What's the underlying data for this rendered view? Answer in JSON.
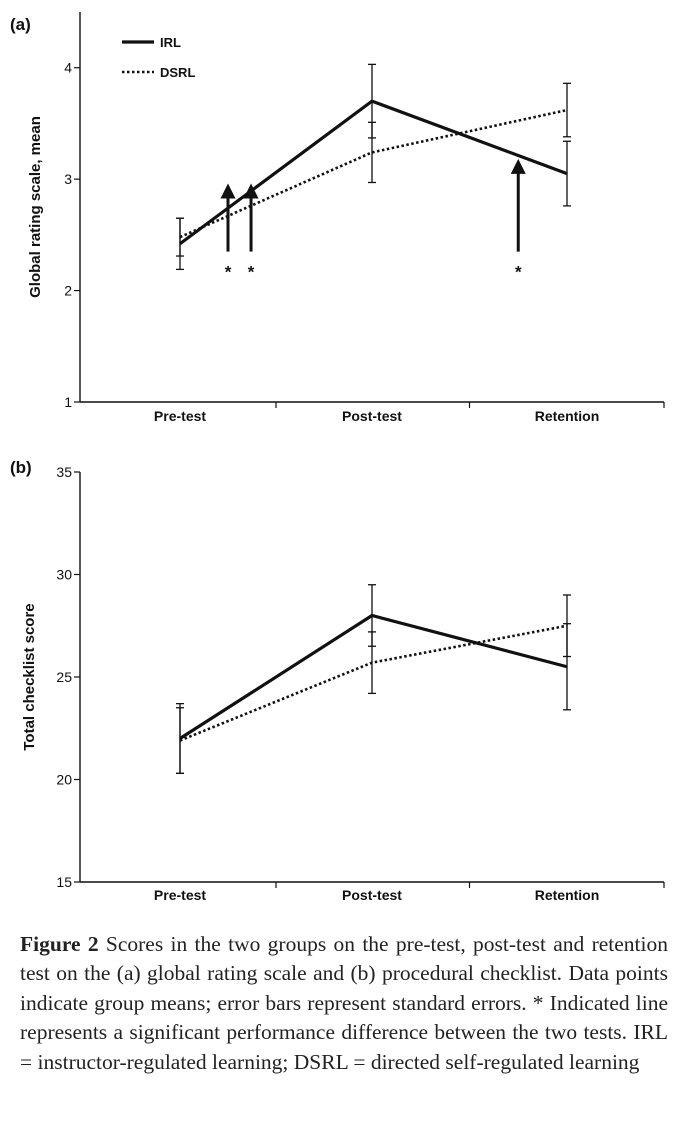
{
  "chart_data": [
    {
      "type": "line",
      "panel_label": "(a)",
      "title": "",
      "xlabel": "",
      "ylabel": "Global rating scale, mean",
      "categories": [
        "Pre-test",
        "Post-test",
        "Retention"
      ],
      "ylim": [
        1,
        4.5
      ],
      "yticks": [
        1,
        2,
        3,
        4
      ],
      "grid": false,
      "legend": "top-left",
      "series": [
        {
          "name": "IRL",
          "style": "solid",
          "values": [
            2.42,
            3.7,
            3.05
          ],
          "errors": [
            0.23,
            0.33,
            0.29
          ]
        },
        {
          "name": "DSRL",
          "style": "dotted",
          "values": [
            2.48,
            3.24,
            3.62
          ],
          "errors": [
            0.17,
            0.27,
            0.24
          ]
        }
      ],
      "annotations": [
        {
          "symbol": "*",
          "x_position": 0.25,
          "y_start": 2.35,
          "y_end": 2.93
        },
        {
          "symbol": "*",
          "x_position": 0.37,
          "y_start": 2.35,
          "y_end": 2.93
        },
        {
          "symbol": "*",
          "x_position": 1.75,
          "y_start": 2.35,
          "y_end": 3.15
        }
      ]
    },
    {
      "type": "line",
      "panel_label": "(b)",
      "title": "",
      "xlabel": "",
      "ylabel": "Total checklist score",
      "categories": [
        "Pre-test",
        "Post-test",
        "Retention"
      ],
      "ylim": [
        15,
        35
      ],
      "yticks": [
        15,
        20,
        25,
        30,
        35
      ],
      "grid": false,
      "legend": "none",
      "series": [
        {
          "name": "IRL",
          "style": "solid",
          "values": [
            22.0,
            28.0,
            25.5
          ],
          "errors": [
            1.7,
            1.5,
            2.1
          ]
        },
        {
          "name": "DSRL",
          "style": "dotted",
          "values": [
            21.9,
            25.7,
            27.5
          ],
          "errors": [
            1.6,
            1.5,
            1.5
          ]
        }
      ],
      "annotations": []
    }
  ],
  "caption": {
    "label": "Figure 2",
    "text": " Scores in the two groups on the pre-test, post-test and retention test on the (a) global rating scale and (b) procedural checklist. Data points indicate group means; error bars represent standard errors. * Indicated line represents a significant performance difference between the two tests. IRL = instructor-regulated learning; DSRL = directed self-regulated learning"
  }
}
